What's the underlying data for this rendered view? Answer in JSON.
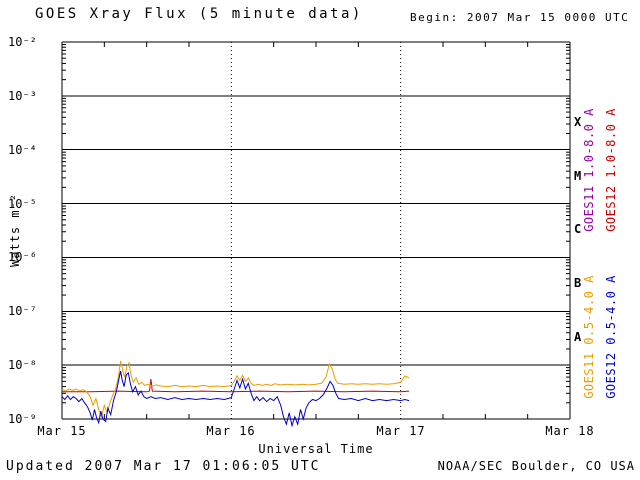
{
  "header": {
    "title": "GOES Xray Flux (5 minute data)",
    "begin": "Begin:  2007 Mar 15 0000 UTC"
  },
  "footer": {
    "updated": "Updated 2007 Mar 17 01:06:05 UTC",
    "credit": "NOAA/SEC Boulder, CO USA"
  },
  "axes": {
    "y_label": "Watts m⁻²",
    "x_label": "Universal Time",
    "y_ticks": [
      "10⁻²",
      "10⁻³",
      "10⁻⁴",
      "10⁻⁵",
      "10⁻⁶",
      "10⁻⁷",
      "10⁻⁸",
      "10⁻⁹"
    ],
    "x_ticks": [
      "Mar 15",
      "Mar 16",
      "Mar 17",
      "Mar 18"
    ],
    "class_letters": [
      "X",
      "M",
      "C",
      "B",
      "A"
    ]
  },
  "legend": {
    "entries": [
      {
        "label": "GOES11 1.0-8.0 A",
        "color": "#9900aa"
      },
      {
        "label": "GOES12 1.0-8.0 A",
        "color": "#cc0000"
      },
      {
        "label": "GOES11 0.5-4.0 A",
        "color": "#ef9c00"
      },
      {
        "label": "GOES12 0.5-4.0 A",
        "color": "#0000cc"
      }
    ]
  },
  "chart_data": {
    "type": "line",
    "title": "GOES Xray Flux (5 minute data)",
    "xlabel": "Universal Time",
    "ylabel": "Watts m-2",
    "x_unit": "hours since 2007-03-15 00:00 UTC",
    "x_range_hours": [
      0,
      72
    ],
    "ylim": [
      1e-09,
      0.01
    ],
    "y_scale": "log",
    "grid": true,
    "x_tick_hours": [
      0,
      24,
      48,
      72
    ],
    "x_tick_labels": [
      "Mar 15",
      "Mar 16",
      "Mar 17",
      "Mar 18"
    ],
    "flare_classes": [
      {
        "letter": "A",
        "range": [
          1e-08,
          1e-07
        ]
      },
      {
        "letter": "B",
        "range": [
          1e-07,
          1e-06
        ]
      },
      {
        "letter": "C",
        "range": [
          1e-06,
          1e-05
        ]
      },
      {
        "letter": "M",
        "range": [
          1e-05,
          0.0001
        ]
      },
      {
        "letter": "X",
        "range": [
          0.0001,
          0.001
        ]
      }
    ],
    "legend_entries": [
      {
        "label": "GOES11 1.0-8.0 A",
        "color": "#9900aa"
      },
      {
        "label": "GOES12 1.0-8.0 A",
        "color": "#cc0000"
      },
      {
        "label": "GOES11 0.5-4.0 A",
        "color": "#ef9c00"
      },
      {
        "label": "GOES12 0.5-4.0 A",
        "color": "#0000cc"
      }
    ],
    "series": [
      {
        "id": "goes12-long",
        "name": "GOES12 1.0-8.0 A",
        "color": "#cc0000",
        "points": [
          [
            0,
            3.2e-09
          ],
          [
            4,
            3.2e-09
          ],
          [
            8,
            3.3e-09
          ],
          [
            12.0,
            3.2e-09
          ],
          [
            12.4,
            3.3e-09
          ],
          [
            12.6,
            5.5e-09
          ],
          [
            12.8,
            3.3e-09
          ],
          [
            16,
            3.2e-09
          ],
          [
            20,
            3.3e-09
          ],
          [
            24,
            3.2e-09
          ],
          [
            28,
            3.3e-09
          ],
          [
            32,
            3.2e-09
          ],
          [
            36,
            3.3e-09
          ],
          [
            40,
            3.2e-09
          ],
          [
            44,
            3.3e-09
          ],
          [
            48,
            3.2e-09
          ],
          [
            49.2,
            3.3e-09
          ]
        ]
      },
      {
        "id": "goes11-short",
        "name": "GOES11 0.5-4.0 A",
        "color": "#ef9c00",
        "points": [
          [
            0,
            3.6e-09
          ],
          [
            0.5,
            3.3e-09
          ],
          [
            1.0,
            3.6e-09
          ],
          [
            1.5,
            3.4e-09
          ],
          [
            2.0,
            3.6e-09
          ],
          [
            2.5,
            3.3e-09
          ],
          [
            3.0,
            3.5e-09
          ],
          [
            3.5,
            3.2e-09
          ],
          [
            4.0,
            2.6e-09
          ],
          [
            4.4,
            1.8e-09
          ],
          [
            4.8,
            2.4e-09
          ],
          [
            5.2,
            1.5e-09
          ],
          [
            5.6,
            1.1e-09
          ],
          [
            6.0,
            1.8e-09
          ],
          [
            6.4,
            1.3e-09
          ],
          [
            6.8,
            2e-09
          ],
          [
            7.2,
            2.8e-09
          ],
          [
            7.6,
            3.6e-09
          ],
          [
            8.0,
            6e-09
          ],
          [
            8.3,
            1.2e-08
          ],
          [
            8.6,
            8e-09
          ],
          [
            8.9,
            6e-09
          ],
          [
            9.2,
            9.5e-09
          ],
          [
            9.5,
            1.1e-08
          ],
          [
            9.8,
            6.5e-09
          ],
          [
            10.1,
            4.8e-09
          ],
          [
            10.5,
            5.8e-09
          ],
          [
            10.9,
            4.4e-09
          ],
          [
            11.3,
            4.8e-09
          ],
          [
            11.7,
            4.2e-09
          ],
          [
            12.2,
            4.4e-09
          ],
          [
            12.8,
            4.1e-09
          ],
          [
            13.4,
            4.3e-09
          ],
          [
            14,
            4.1e-09
          ],
          [
            15,
            4e-09
          ],
          [
            16,
            4.2e-09
          ],
          [
            17,
            4e-09
          ],
          [
            18,
            4.1e-09
          ],
          [
            19,
            4e-09
          ],
          [
            20,
            4.2e-09
          ],
          [
            21,
            4e-09
          ],
          [
            22,
            4.1e-09
          ],
          [
            23,
            4e-09
          ],
          [
            24,
            4.2e-09
          ],
          [
            24.4,
            5e-09
          ],
          [
            24.8,
            6.3e-09
          ],
          [
            25.2,
            5.2e-09
          ],
          [
            25.6,
            6.5e-09
          ],
          [
            26.0,
            5e-09
          ],
          [
            26.4,
            5.8e-09
          ],
          [
            26.8,
            4.6e-09
          ],
          [
            27.2,
            4.2e-09
          ],
          [
            27.8,
            4.4e-09
          ],
          [
            28.4,
            4.2e-09
          ],
          [
            29.0,
            4.4e-09
          ],
          [
            29.6,
            4.2e-09
          ],
          [
            30.2,
            4.5e-09
          ],
          [
            31,
            4.3e-09
          ],
          [
            32,
            4.4e-09
          ],
          [
            33,
            4.3e-09
          ],
          [
            34,
            4.4e-09
          ],
          [
            35,
            4.3e-09
          ],
          [
            36,
            4.4e-09
          ],
          [
            36.8,
            4.6e-09
          ],
          [
            37.4,
            6e-09
          ],
          [
            37.9,
            1.05e-08
          ],
          [
            38.3,
            8.5e-09
          ],
          [
            38.7,
            5.5e-09
          ],
          [
            39.1,
            4.6e-09
          ],
          [
            40,
            4.4e-09
          ],
          [
            41,
            4.5e-09
          ],
          [
            42,
            4.4e-09
          ],
          [
            43,
            4.5e-09
          ],
          [
            44,
            4.4e-09
          ],
          [
            45,
            4.5e-09
          ],
          [
            46,
            4.4e-09
          ],
          [
            47,
            4.5e-09
          ],
          [
            48,
            4.8e-09
          ],
          [
            48.6,
            6.3e-09
          ],
          [
            49.2,
            5.8e-09
          ]
        ]
      },
      {
        "id": "goes12-short",
        "name": "GOES12 0.5-4.0 A",
        "color": "#0000cc",
        "points": [
          [
            0,
            2.6e-09
          ],
          [
            0.4,
            2.3e-09
          ],
          [
            0.8,
            2.7e-09
          ],
          [
            1.2,
            2.3e-09
          ],
          [
            1.6,
            2.6e-09
          ],
          [
            2.0,
            2.4e-09
          ],
          [
            2.4,
            2.1e-09
          ],
          [
            2.8,
            2.4e-09
          ],
          [
            3.2,
            2e-09
          ],
          [
            3.6,
            1.7e-09
          ],
          [
            4.0,
            1.3e-09
          ],
          [
            4.3,
            9.5e-10
          ],
          [
            4.6,
            1.5e-09
          ],
          [
            4.9,
            1.05e-09
          ],
          [
            5.2,
            8.5e-10
          ],
          [
            5.5,
            1.4e-09
          ],
          [
            5.8,
            1e-09
          ],
          [
            6.2,
            9e-10
          ],
          [
            6.5,
            1.6e-09
          ],
          [
            6.9,
            1.2e-09
          ],
          [
            7.3,
            2.2e-09
          ],
          [
            7.7,
            3.2e-09
          ],
          [
            8.0,
            5e-09
          ],
          [
            8.3,
            7.8e-09
          ],
          [
            8.5,
            5.5e-09
          ],
          [
            8.8,
            4e-09
          ],
          [
            9.1,
            6.5e-09
          ],
          [
            9.4,
            7.2e-09
          ],
          [
            9.7,
            4.5e-09
          ],
          [
            10.0,
            3.2e-09
          ],
          [
            10.4,
            4e-09
          ],
          [
            10.8,
            2.8e-09
          ],
          [
            11.2,
            3.3e-09
          ],
          [
            11.6,
            2.6e-09
          ],
          [
            12.0,
            2.4e-09
          ],
          [
            12.6,
            2.6e-09
          ],
          [
            13.2,
            2.4e-09
          ],
          [
            14,
            2.5e-09
          ],
          [
            15,
            2.3e-09
          ],
          [
            16,
            2.5e-09
          ],
          [
            17,
            2.3e-09
          ],
          [
            18,
            2.4e-09
          ],
          [
            19,
            2.3e-09
          ],
          [
            20,
            2.4e-09
          ],
          [
            21,
            2.3e-09
          ],
          [
            22,
            2.4e-09
          ],
          [
            23,
            2.3e-09
          ],
          [
            24,
            2.5e-09
          ],
          [
            24.4,
            3.6e-09
          ],
          [
            24.8,
            5.2e-09
          ],
          [
            25.2,
            3.8e-09
          ],
          [
            25.6,
            5.5e-09
          ],
          [
            26.0,
            3.6e-09
          ],
          [
            26.4,
            4.6e-09
          ],
          [
            26.8,
            3e-09
          ],
          [
            27.2,
            2.2e-09
          ],
          [
            27.6,
            2.6e-09
          ],
          [
            28.0,
            2.2e-09
          ],
          [
            28.5,
            2.5e-09
          ],
          [
            29.0,
            2.1e-09
          ],
          [
            29.5,
            2.4e-09
          ],
          [
            30.0,
            2.2e-09
          ],
          [
            30.5,
            2.6e-09
          ],
          [
            31.0,
            1.8e-09
          ],
          [
            31.4,
            1.1e-09
          ],
          [
            31.8,
            8e-10
          ],
          [
            32.2,
            1.3e-09
          ],
          [
            32.6,
            7.5e-10
          ],
          [
            33.0,
            1.1e-09
          ],
          [
            33.4,
            8e-10
          ],
          [
            33.8,
            1.5e-09
          ],
          [
            34.2,
            1e-09
          ],
          [
            34.6,
            1.6e-09
          ],
          [
            35.0,
            2e-09
          ],
          [
            35.5,
            2.3e-09
          ],
          [
            36,
            2.2e-09
          ],
          [
            36.5,
            2.4e-09
          ],
          [
            37,
            2.8e-09
          ],
          [
            37.5,
            3.6e-09
          ],
          [
            38.0,
            5e-09
          ],
          [
            38.4,
            4.2e-09
          ],
          [
            38.8,
            3e-09
          ],
          [
            39.2,
            2.4e-09
          ],
          [
            40,
            2.3e-09
          ],
          [
            41,
            2.4e-09
          ],
          [
            42,
            2.2e-09
          ],
          [
            43,
            2.4e-09
          ],
          [
            44,
            2.2e-09
          ],
          [
            45,
            2.3e-09
          ],
          [
            46,
            2.2e-09
          ],
          [
            47,
            2.3e-09
          ],
          [
            48,
            2.2e-09
          ],
          [
            48.6,
            2.3e-09
          ],
          [
            49.2,
            2.2e-09
          ]
        ]
      }
    ]
  }
}
